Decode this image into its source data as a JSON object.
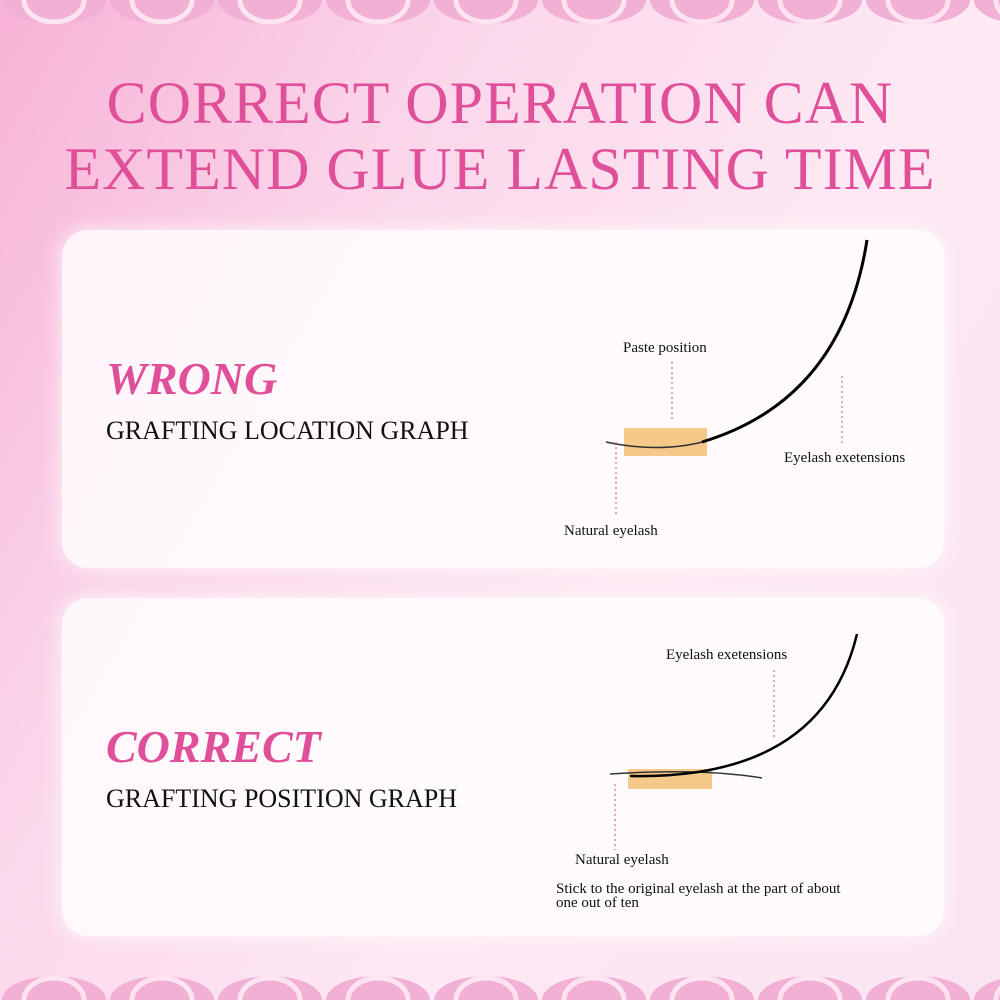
{
  "title": {
    "line1": "CORRECT OPERATION CAN",
    "line2": "EXTEND GLUE LASTING TIME"
  },
  "panels": [
    {
      "verdict": "WRONG",
      "subtitle": "GRAFTING LOCATION GRAPH",
      "labels": {
        "paste": "Paste position",
        "extension": "Eyelash exetensions",
        "natural": "Natural eyelash"
      }
    },
    {
      "verdict": "CORRECT",
      "subtitle": "GRAFTING POSITION GRAPH",
      "labels": {
        "extension": "Eyelash exetensions",
        "natural": "Natural eyelash",
        "note_line1": "Stick to the original eyelash at the part of about",
        "note_line2": "one out of ten"
      }
    }
  ],
  "colors": {
    "accent": "#e0509a",
    "pad": "#f6c98a",
    "border": "#f2b0d4"
  }
}
